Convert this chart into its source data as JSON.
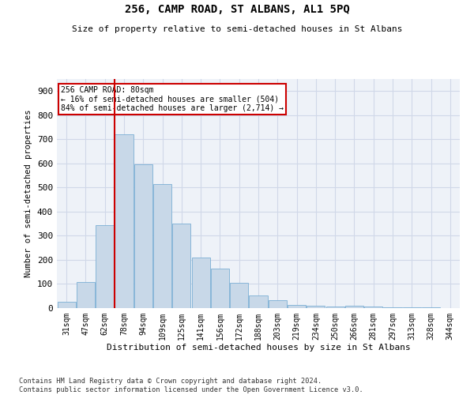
{
  "title": "256, CAMP ROAD, ST ALBANS, AL1 5PQ",
  "subtitle": "Size of property relative to semi-detached houses in St Albans",
  "xlabel": "Distribution of semi-detached houses by size in St Albans",
  "ylabel": "Number of semi-detached properties",
  "footnote": "Contains HM Land Registry data © Crown copyright and database right 2024.\nContains public sector information licensed under the Open Government Licence v3.0.",
  "bar_labels": [
    "31sqm",
    "47sqm",
    "62sqm",
    "78sqm",
    "94sqm",
    "109sqm",
    "125sqm",
    "141sqm",
    "156sqm",
    "172sqm",
    "188sqm",
    "203sqm",
    "219sqm",
    "234sqm",
    "250sqm",
    "266sqm",
    "281sqm",
    "297sqm",
    "313sqm",
    "328sqm",
    "344sqm"
  ],
  "bar_values": [
    25,
    108,
    345,
    722,
    595,
    513,
    350,
    210,
    165,
    105,
    53,
    32,
    14,
    10,
    5,
    10,
    8,
    3,
    3,
    2,
    1
  ],
  "bar_color": "#c8d8e8",
  "bar_edge_color": "#7bafd4",
  "grid_color": "#d0d8e8",
  "background_color": "#eef2f8",
  "annotation_text": "256 CAMP ROAD: 80sqm\n← 16% of semi-detached houses are smaller (504)\n84% of semi-detached houses are larger (2,714) →",
  "vline_x_index": 3,
  "vline_color": "#cc0000",
  "annotation_box_color": "#cc0000",
  "ylim": [
    0,
    950
  ],
  "yticks": [
    0,
    100,
    200,
    300,
    400,
    500,
    600,
    700,
    800,
    900
  ]
}
